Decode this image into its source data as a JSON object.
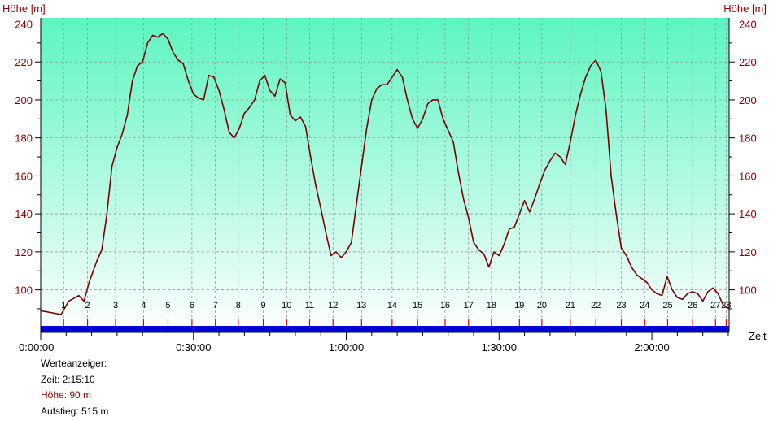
{
  "chart_data": {
    "type": "area",
    "ylabel_left": "Höhe [m]",
    "ylabel_right": "Höhe [m]",
    "xlabel": "Zeit",
    "x_unit": "minutes",
    "xlim": [
      0,
      135.17
    ],
    "ylim": [
      80,
      250
    ],
    "y_ticks": [
      100,
      120,
      140,
      160,
      180,
      200,
      220,
      240
    ],
    "x_tick_labels": [
      "0:00:00",
      "0:30:00",
      "1:00:00",
      "1:30:00",
      "2:00:00"
    ],
    "x_tick_values": [
      0,
      30,
      60,
      90,
      120
    ],
    "grid": true,
    "colors": {
      "line": "#7a0000",
      "fill_top": "#5cf5c0",
      "fill_bottom": "#ffffff",
      "band": "#0000d8",
      "tick": "#e00000"
    },
    "markers": [
      {
        "label": "1",
        "t": 4.5
      },
      {
        "label": "2",
        "t": 9.2
      },
      {
        "label": "3",
        "t": 14.7
      },
      {
        "label": "4",
        "t": 20.2
      },
      {
        "label": "5",
        "t": 25.0
      },
      {
        "label": "6",
        "t": 29.7
      },
      {
        "label": "7",
        "t": 34.3
      },
      {
        "label": "8",
        "t": 38.8
      },
      {
        "label": "9",
        "t": 43.7
      },
      {
        "label": "10",
        "t": 48.3
      },
      {
        "label": "11",
        "t": 52.8
      },
      {
        "label": "12",
        "t": 57.4
      },
      {
        "label": "13",
        "t": 63.0
      },
      {
        "label": "14",
        "t": 69.0
      },
      {
        "label": "15",
        "t": 74.0
      },
      {
        "label": "16",
        "t": 79.4
      },
      {
        "label": "17",
        "t": 84.0
      },
      {
        "label": "18",
        "t": 88.5
      },
      {
        "label": "19",
        "t": 94.0
      },
      {
        "label": "20",
        "t": 98.4
      },
      {
        "label": "21",
        "t": 104.0
      },
      {
        "label": "22",
        "t": 109.0
      },
      {
        "label": "23",
        "t": 114.0
      },
      {
        "label": "24",
        "t": 118.6
      },
      {
        "label": "25",
        "t": 123.1
      },
      {
        "label": "26",
        "t": 128.0
      },
      {
        "label": "27",
        "t": 132.5
      },
      {
        "label": "28",
        "t": 134.6
      }
    ],
    "series": [
      {
        "points": [
          [
            0,
            89
          ],
          [
            2,
            88
          ],
          [
            4,
            87
          ],
          [
            5.5,
            94
          ],
          [
            7.5,
            97
          ],
          [
            8.5,
            94
          ],
          [
            9.5,
            104
          ],
          [
            11,
            115
          ],
          [
            12,
            121
          ],
          [
            13,
            140
          ],
          [
            14,
            165
          ],
          [
            15,
            175
          ],
          [
            16,
            182
          ],
          [
            17,
            192
          ],
          [
            18,
            210
          ],
          [
            19,
            218
          ],
          [
            20,
            220
          ],
          [
            21,
            230
          ],
          [
            22,
            234
          ],
          [
            23,
            233
          ],
          [
            24,
            235
          ],
          [
            25,
            232
          ],
          [
            26,
            225
          ],
          [
            27,
            221
          ],
          [
            28,
            219
          ],
          [
            29,
            210
          ],
          [
            30,
            203
          ],
          [
            31,
            201
          ],
          [
            32,
            200
          ],
          [
            33,
            213
          ],
          [
            34,
            212
          ],
          [
            35,
            205
          ],
          [
            36,
            195
          ],
          [
            37,
            183
          ],
          [
            38,
            180
          ],
          [
            39,
            185
          ],
          [
            40,
            193
          ],
          [
            41,
            196
          ],
          [
            42,
            200
          ],
          [
            43,
            210
          ],
          [
            44,
            213
          ],
          [
            45,
            205
          ],
          [
            46,
            202
          ],
          [
            47,
            211
          ],
          [
            48,
            209
          ],
          [
            49,
            192
          ],
          [
            50,
            189
          ],
          [
            51,
            191
          ],
          [
            52,
            186
          ],
          [
            53,
            170
          ],
          [
            54,
            155
          ],
          [
            55,
            143
          ],
          [
            56,
            130
          ],
          [
            57,
            118
          ],
          [
            58,
            120
          ],
          [
            59,
            117
          ],
          [
            60,
            120
          ],
          [
            61,
            125
          ],
          [
            62,
            145
          ],
          [
            63,
            165
          ],
          [
            64,
            185
          ],
          [
            65,
            200
          ],
          [
            66,
            206
          ],
          [
            67,
            208
          ],
          [
            68,
            208
          ],
          [
            69,
            212
          ],
          [
            70,
            216
          ],
          [
            71,
            212
          ],
          [
            72,
            200
          ],
          [
            73,
            190
          ],
          [
            74,
            185
          ],
          [
            75,
            190
          ],
          [
            76,
            198
          ],
          [
            77,
            200
          ],
          [
            78,
            200
          ],
          [
            79,
            190
          ],
          [
            80,
            184
          ],
          [
            81,
            178
          ],
          [
            82,
            162
          ],
          [
            83,
            148
          ],
          [
            84,
            138
          ],
          [
            85,
            125
          ],
          [
            86,
            121
          ],
          [
            87,
            119
          ],
          [
            88,
            112
          ],
          [
            89,
            120
          ],
          [
            90,
            118
          ],
          [
            91,
            124
          ],
          [
            92,
            132
          ],
          [
            93,
            133
          ],
          [
            94,
            140
          ],
          [
            95,
            147
          ],
          [
            96,
            141
          ],
          [
            97,
            148
          ],
          [
            98,
            156
          ],
          [
            99,
            163
          ],
          [
            100,
            168
          ],
          [
            101,
            172
          ],
          [
            102,
            170
          ],
          [
            103,
            166
          ],
          [
            104,
            178
          ],
          [
            105,
            192
          ],
          [
            106,
            203
          ],
          [
            107,
            212
          ],
          [
            108,
            218
          ],
          [
            109,
            221
          ],
          [
            110,
            215
          ],
          [
            111,
            195
          ],
          [
            112,
            160
          ],
          [
            113,
            140
          ],
          [
            114,
            122
          ],
          [
            115,
            118
          ],
          [
            116,
            112
          ],
          [
            117,
            108
          ],
          [
            118,
            106
          ],
          [
            119,
            104
          ],
          [
            120,
            100
          ],
          [
            121,
            98
          ],
          [
            122,
            97
          ],
          [
            123,
            107
          ],
          [
            124,
            100
          ],
          [
            125,
            96
          ],
          [
            126,
            95
          ],
          [
            127,
            98
          ],
          [
            128,
            99
          ],
          [
            129,
            98
          ],
          [
            130,
            94
          ],
          [
            131,
            99
          ],
          [
            132,
            101
          ],
          [
            133,
            98
          ],
          [
            134,
            92
          ],
          [
            135.17,
            90
          ]
        ]
      }
    ]
  },
  "info": {
    "title": "Werteanzeiger:",
    "time": "Zeit: 2:15:10",
    "height": "Höhe: 90 m",
    "ascent": "Aufstieg: 515 m"
  }
}
